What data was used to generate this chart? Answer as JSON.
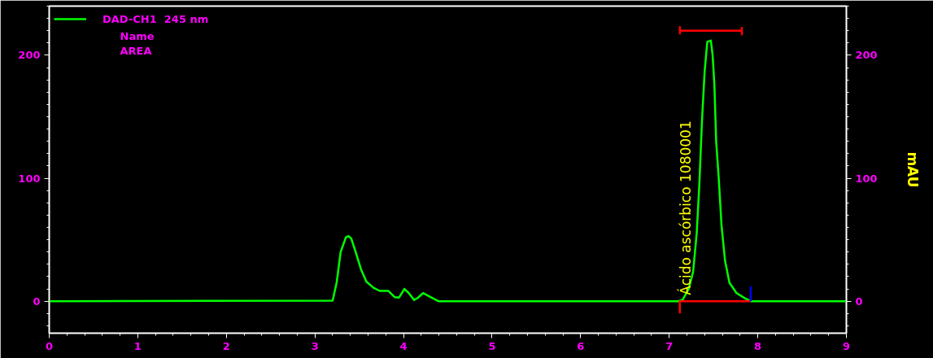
{
  "chart_data": {
    "type": "line",
    "y2label": "mAU",
    "xlim": [
      0,
      9
    ],
    "ylim": [
      -26,
      240
    ],
    "y2lim": [
      -26,
      240
    ],
    "xticks": [
      0,
      1,
      2,
      3,
      4,
      5,
      6,
      7,
      8,
      9
    ],
    "yticks": [
      0,
      100,
      200
    ],
    "y2ticks": [
      0,
      100,
      200
    ],
    "grid": false,
    "legend": "top left",
    "marker": "none",
    "line_style": "solid",
    "annotations": [
      "Name",
      "AREA",
      {
        "text": "Ácido ascórbico    1080001",
        "x": 7.19,
        "y": 5
      }
    ],
    "series": [
      {
        "name": "DAD-CH1  245 nm",
        "color": "#00ff00",
        "x": [
          0,
          3.2,
          3.245,
          3.29,
          3.35,
          3.38,
          3.41,
          3.46,
          3.52,
          3.58,
          3.66,
          3.73,
          3.83,
          3.9,
          3.95,
          4.01,
          4.06,
          4.12,
          4.16,
          4.22,
          4.28,
          4.38,
          4.4,
          7.1,
          7.15,
          7.22,
          7.27,
          7.31,
          7.34,
          7.37,
          7.4,
          7.43,
          7.47,
          7.49,
          7.51,
          7.53,
          7.56,
          7.59,
          7.63,
          7.68,
          7.76,
          7.86,
          7.92,
          9
        ],
        "values": [
          0,
          0.5,
          15,
          40,
          52,
          53,
          51,
          40,
          26,
          16,
          11,
          8.4,
          8.4,
          3.3,
          3,
          10,
          6.6,
          1,
          2.6,
          6.6,
          4.4,
          0.5,
          0,
          0,
          1,
          10,
          24,
          55,
          95,
          147,
          187,
          211,
          212,
          200,
          176,
          130,
          99,
          62,
          33,
          15,
          6.6,
          2.2,
          0,
          0
        ]
      },
      {
        "color": "#ff0000",
        "x": [
          7.12,
          7.12,
          7.92
        ],
        "values": [
          -10,
          0,
          0
        ]
      },
      {
        "color": "#ff0000",
        "x": [
          7.12,
          7.12,
          7.12,
          7.82,
          7.82,
          7.82
        ],
        "values": [
          217,
          223,
          220,
          220,
          217,
          223
        ]
      },
      {
        "color": "#0000ff",
        "x": [
          7.92,
          7.92
        ],
        "values": [
          0,
          12
        ]
      }
    ]
  }
}
